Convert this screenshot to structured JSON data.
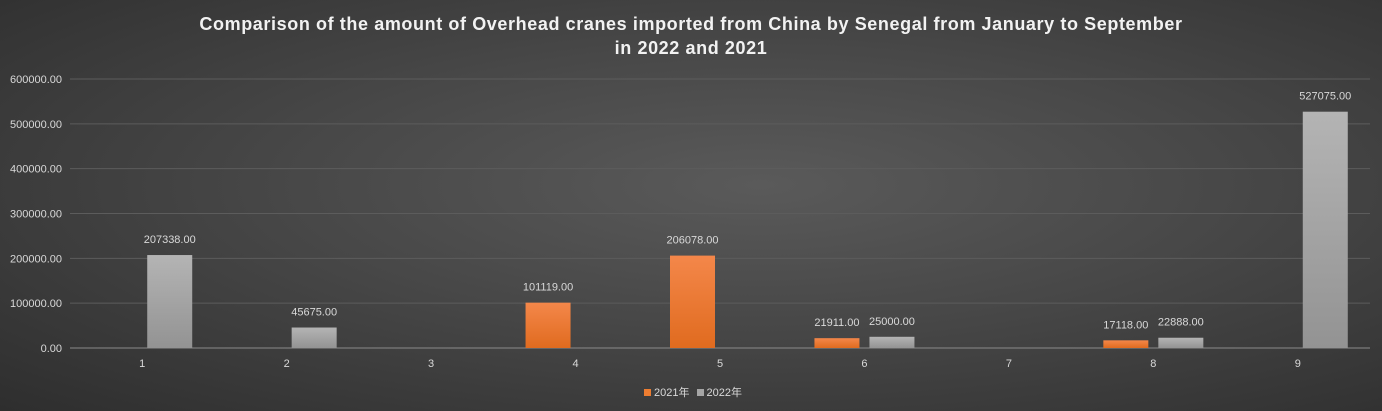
{
  "chart_data": {
    "type": "bar",
    "title": "Comparison of the amount of Overhead cranes imported from China by Senegal from January to September in 2022 and 2021",
    "title_lines": [
      "Comparison of the amount of Overhead cranes imported from China by Senegal from January to September",
      "in 2022 and 2021"
    ],
    "categories": [
      "1",
      "2",
      "3",
      "4",
      "5",
      "6",
      "7",
      "8",
      "9"
    ],
    "series": [
      {
        "name": "2021年",
        "color": "#ed7d31",
        "values": [
          null,
          null,
          null,
          101119,
          206078,
          21911,
          null,
          17118,
          null
        ]
      },
      {
        "name": "2022年",
        "color": "#a5a5a5",
        "values": [
          207338,
          45675,
          null,
          null,
          null,
          25000,
          null,
          22888,
          527075
        ]
      }
    ],
    "ylim": [
      0,
      600000
    ],
    "yticks": [
      "0.00",
      "100000.00",
      "200000.00",
      "300000.00",
      "400000.00",
      "500000.00",
      "600000.00"
    ],
    "grid": true,
    "legend": "bottom",
    "xlabel": "",
    "ylabel": ""
  }
}
